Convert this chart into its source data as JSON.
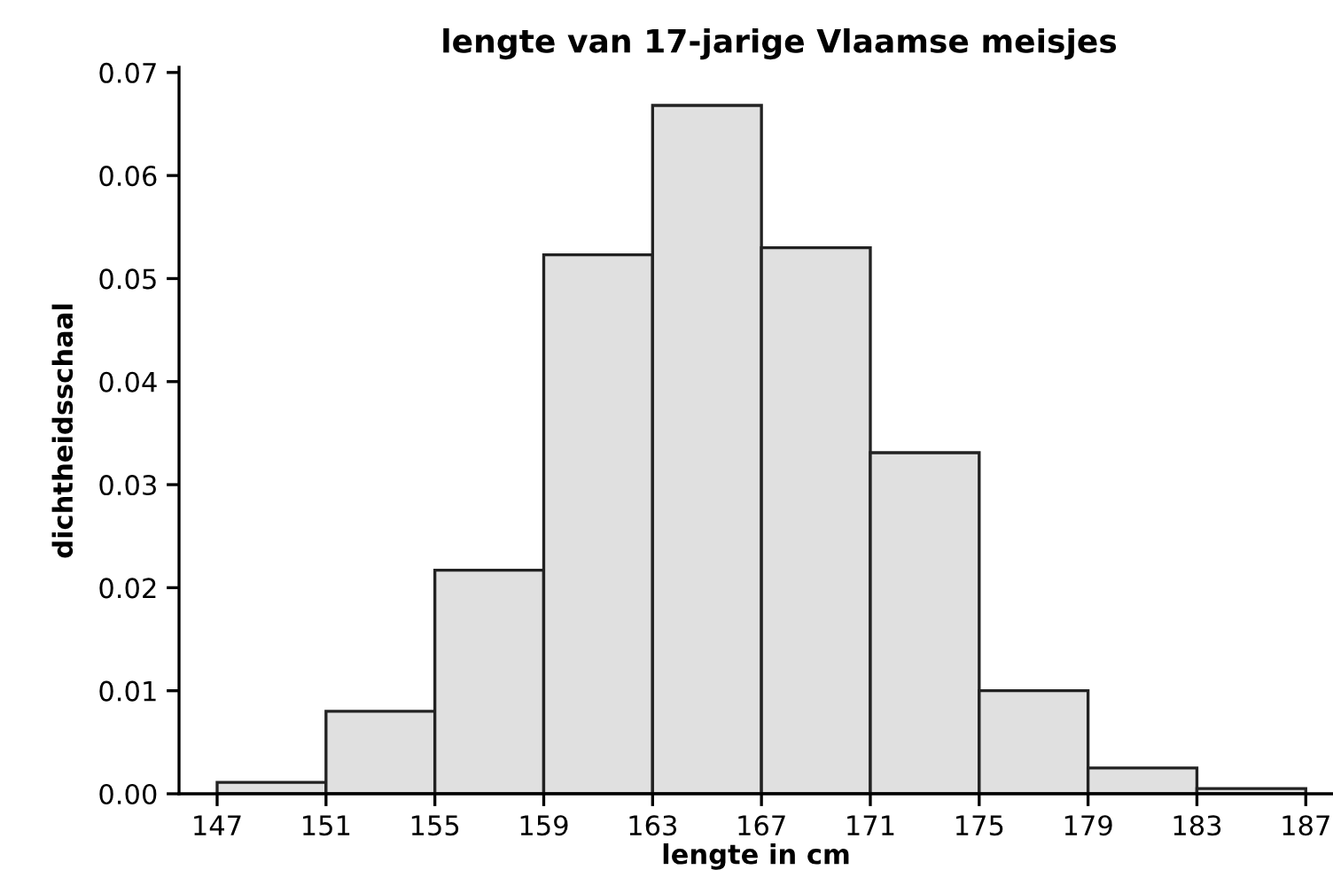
{
  "chart_data": {
    "type": "histogram",
    "title": "lengte van 17-jarige Vlaamse meisjes",
    "xlabel": "lengte in cm",
    "ylabel": "dichtheidsschaal",
    "bins": [
      147,
      151,
      155,
      159,
      163,
      167,
      171,
      175,
      179,
      183,
      187
    ],
    "values": [
      0.0011,
      0.008,
      0.0217,
      0.0523,
      0.0668,
      0.053,
      0.0331,
      0.01,
      0.0025,
      0.0005
    ],
    "color": "#e0e0e0",
    "xlim": [
      145.6,
      188
    ],
    "xticks": [
      147,
      151,
      155,
      159,
      163,
      167,
      171,
      175,
      179,
      183,
      187
    ],
    "ylim": [
      0,
      0.0705
    ],
    "yticks": [
      {
        "value": 0,
        "label": "0.00"
      },
      {
        "value": 0.01,
        "label": "0.01"
      },
      {
        "value": 0.02,
        "label": "0.02"
      },
      {
        "value": 0.03,
        "label": "0.03"
      },
      {
        "value": 0.04,
        "label": "0.04"
      },
      {
        "value": 0.05,
        "label": "0.05"
      },
      {
        "value": 0.06,
        "label": "0.06"
      },
      {
        "value": 0.07,
        "label": "0.07"
      }
    ],
    "grid": false,
    "legend": false
  }
}
